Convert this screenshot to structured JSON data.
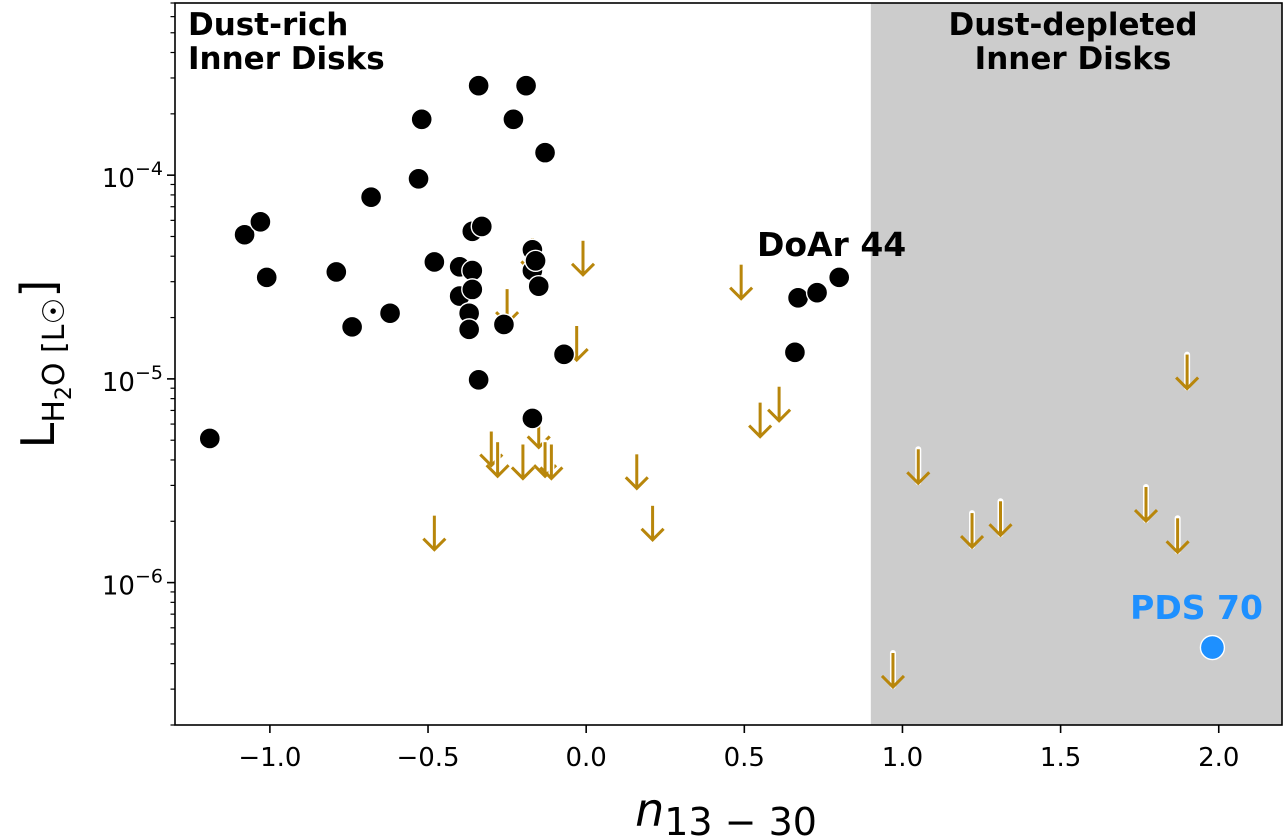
{
  "chart_data": {
    "type": "scatter",
    "title": "",
    "xlabel": {
      "base": "n",
      "sub": "13 − 30"
    },
    "ylabel": {
      "base": "L",
      "sub": "H",
      "sub2": "2",
      "rest": "O [L",
      "sun": "☉",
      "close": "]"
    },
    "xlim": [
      -1.3,
      2.2
    ],
    "ylim": [
      2e-07,
      0.0007
    ],
    "yscale": "log",
    "grid": false,
    "x_ticks": [
      {
        "value": -1.0,
        "label": "−1.0"
      },
      {
        "value": -0.5,
        "label": "−0.5"
      },
      {
        "value": 0.0,
        "label": "0.0"
      },
      {
        "value": 0.5,
        "label": "0.5"
      },
      {
        "value": 1.0,
        "label": "1.0"
      },
      {
        "value": 1.5,
        "label": "1.5"
      },
      {
        "value": 2.0,
        "label": "2.0"
      }
    ],
    "y_ticks": [
      {
        "value": 1e-06,
        "base": "10",
        "exp": "−6"
      },
      {
        "value": 1e-05,
        "base": "10",
        "exp": "−5"
      },
      {
        "value": 0.0001,
        "base": "10",
        "exp": "−4"
      }
    ],
    "shaded_region": {
      "x_from": 0.9,
      "x_to": 2.2,
      "color": "#cccccc"
    },
    "region_labels": {
      "left": [
        "Dust-rich",
        "Inner Disks"
      ],
      "right": [
        "Dust-depleted",
        "Inner Disks"
      ]
    },
    "colors": {
      "detections": "#000000",
      "upper_limits": "#b8860b",
      "highlight": "#1e90ff",
      "axes": "#000000"
    },
    "series": [
      {
        "role": "detections",
        "marker": "filled-circle",
        "points": [
          [
            -1.19,
            5.1e-06
          ],
          [
            -1.08,
            5.1e-05
          ],
          [
            -1.03,
            5.9e-05
          ],
          [
            -1.01,
            3.15e-05
          ],
          [
            -0.79,
            3.35e-05
          ],
          [
            -0.74,
            1.8e-05
          ],
          [
            -0.68,
            7.8e-05
          ],
          [
            -0.62,
            2.1e-05
          ],
          [
            -0.53,
            9.6e-05
          ],
          [
            -0.52,
            0.000188
          ],
          [
            -0.48,
            3.75e-05
          ],
          [
            -0.4,
            3.55e-05
          ],
          [
            -0.4,
            2.55e-05
          ],
          [
            -0.37,
            2.1e-05
          ],
          [
            -0.37,
            1.75e-05
          ],
          [
            -0.36,
            5.3e-05
          ],
          [
            -0.36,
            3.4e-05
          ],
          [
            -0.36,
            2.75e-05
          ],
          [
            -0.34,
            0.000275
          ],
          [
            -0.34,
            9.9e-06
          ],
          [
            -0.33,
            5.6e-05
          ],
          [
            -0.26,
            1.85e-05
          ],
          [
            -0.23,
            0.000188
          ],
          [
            -0.19,
            0.000275
          ],
          [
            -0.17,
            4.3e-05
          ],
          [
            -0.17,
            3.4e-05
          ],
          [
            -0.17,
            6.4e-06
          ],
          [
            -0.16,
            3.8e-05
          ],
          [
            -0.15,
            2.85e-05
          ],
          [
            -0.13,
            0.000129
          ],
          [
            -0.07,
            1.32e-05
          ],
          [
            0.66,
            1.35e-05
          ],
          [
            0.67,
            2.5e-05
          ],
          [
            0.73,
            2.65e-05
          ],
          [
            0.8,
            3.15e-05
          ]
        ]
      },
      {
        "role": "upper_limits",
        "marker": "down-arrow",
        "points": [
          [
            -0.48,
            1.7e-06
          ],
          [
            -0.3,
            4.4e-06
          ],
          [
            -0.28,
            3.9e-06
          ],
          [
            -0.25,
            2.2e-05
          ],
          [
            -0.2,
            3.8e-06
          ],
          [
            -0.17,
            3.9e-05
          ],
          [
            -0.15,
            5.4e-06
          ],
          [
            -0.13,
            3.9e-06
          ],
          [
            -0.11,
            3.8e-06
          ],
          [
            -0.03,
            1.45e-05
          ],
          [
            -0.01,
            3.8e-05
          ],
          [
            0.16,
            3.4e-06
          ],
          [
            0.21,
            1.9e-06
          ],
          [
            0.49,
            2.9e-05
          ],
          [
            0.55,
            6.1e-06
          ],
          [
            0.61,
            7.3e-06
          ],
          [
            0.97,
            3.6e-07
          ],
          [
            1.05,
            3.6e-06
          ],
          [
            1.22,
            1.75e-06
          ],
          [
            1.31,
            2e-06
          ],
          [
            1.77,
            2.35e-06
          ],
          [
            1.87,
            1.65e-06
          ],
          [
            1.9,
            1.05e-05
          ]
        ]
      },
      {
        "role": "highlight",
        "name": "PDS 70",
        "marker": "filled-circle",
        "points": [
          [
            1.98,
            4.8e-07
          ]
        ]
      }
    ],
    "annotations": [
      {
        "text": "DoAr 44",
        "x": 0.54,
        "y": 4.6e-05,
        "color": "#000000"
      },
      {
        "text": "PDS 70",
        "x": 1.72,
        "y": 7.5e-07,
        "color": "#1e90ff"
      }
    ]
  }
}
